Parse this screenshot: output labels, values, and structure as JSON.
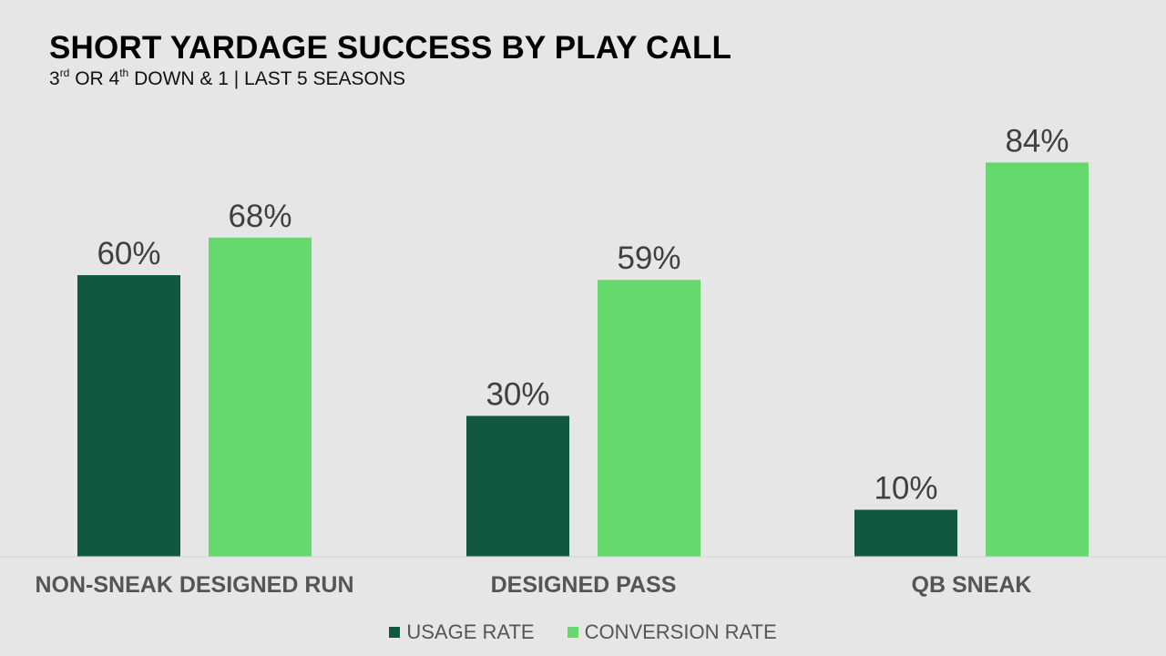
{
  "header": {
    "title": "SHORT YARDAGE SUCCESS BY PLAY CALL",
    "subtitle_part1": "3",
    "subtitle_sup1": "rd",
    "subtitle_part2": " OR 4",
    "subtitle_sup2": "th",
    "subtitle_part3": " DOWN & 1 | LAST 5 SEASONS"
  },
  "colors": {
    "usage": "#12573f",
    "conversion": "#66d96e",
    "label_text": "#404040",
    "category_text": "#555555"
  },
  "chart_data": {
    "type": "bar",
    "title": "SHORT YARDAGE SUCCESS BY PLAY CALL",
    "categories": [
      "NON-SNEAK DESIGNED RUN",
      "DESIGNED PASS",
      "QB SNEAK"
    ],
    "series": [
      {
        "name": "USAGE RATE",
        "values": [
          60,
          30,
          10
        ],
        "labels": [
          "60%",
          "30%",
          "10%"
        ]
      },
      {
        "name": "CONVERSION RATE",
        "values": [
          68,
          59,
          84
        ],
        "labels": [
          "68%",
          "59%",
          "84%"
        ]
      }
    ],
    "ylim": [
      0,
      100
    ],
    "grid": false,
    "legend": "bottom",
    "unit": "%"
  }
}
